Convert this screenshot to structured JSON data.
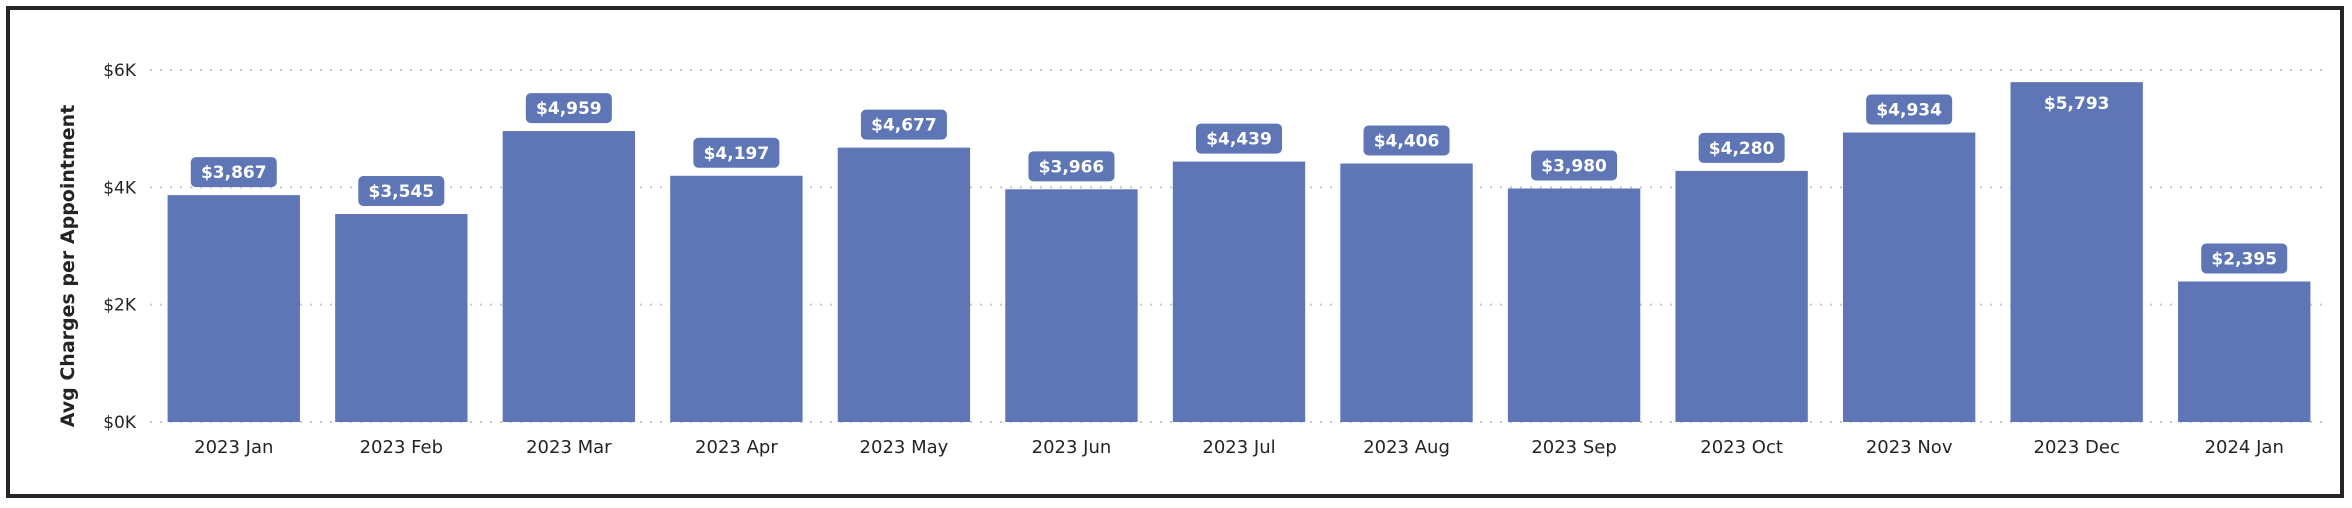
{
  "chart_data": {
    "type": "bar",
    "title": "",
    "xlabel": "",
    "ylabel": "Avg Charges per Appointment",
    "categories": [
      "2023 Jan",
      "2023 Feb",
      "2023 Mar",
      "2023 Apr",
      "2023 May",
      "2023 Jun",
      "2023 Jul",
      "2023 Aug",
      "2023 Sep",
      "2023 Oct",
      "2023 Nov",
      "2023 Dec",
      "2024 Jan"
    ],
    "values": [
      3867,
      3545,
      4959,
      4197,
      4677,
      3966,
      4439,
      4406,
      3980,
      4280,
      4934,
      5793,
      2395
    ],
    "value_labels": [
      "$3,867",
      "$3,545",
      "$4,959",
      "$4,197",
      "$4,677",
      "$3,966",
      "$4,439",
      "$4,406",
      "$3,980",
      "$4,280",
      "$4,934",
      "$5,793",
      "$2,395"
    ],
    "y_ticks": [
      0,
      2000,
      4000,
      6000
    ],
    "y_tick_labels": [
      "$0K",
      "$2K",
      "$4K",
      "$6K"
    ],
    "ylim": [
      0,
      6000
    ],
    "grid": true,
    "grid_style": "dotted",
    "legend": "none",
    "colors": {
      "bar": "#5E75B6",
      "label_bg": "#5E75B6",
      "label_text": "#FFFFFF",
      "grid": "#C8C8C8",
      "text": "#252423"
    }
  }
}
